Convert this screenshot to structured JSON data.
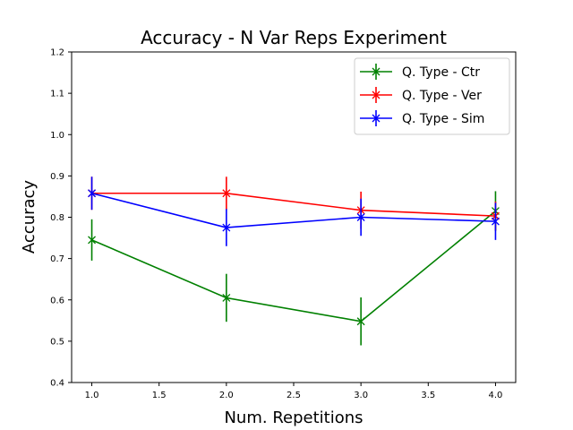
{
  "chart_data": {
    "type": "line",
    "title": "Accuracy - N Var Reps Experiment",
    "xlabel": "Num. Repetitions",
    "ylabel": "Accuracy",
    "xlim": [
      0.85,
      4.15
    ],
    "ylim": [
      0.4,
      1.2
    ],
    "xticks": [
      1.0,
      1.5,
      2.0,
      2.5,
      3.0,
      3.5,
      4.0
    ],
    "xtick_labels": [
      "1.0",
      "1.5",
      "2.0",
      "2.5",
      "3.0",
      "3.5",
      "4.0"
    ],
    "yticks": [
      0.4,
      0.5,
      0.6,
      0.7,
      0.8,
      0.9,
      1.0,
      1.1,
      1.2
    ],
    "ytick_labels": [
      "0.4",
      "0.5",
      "0.6",
      "0.7",
      "0.8",
      "0.9",
      "1.0",
      "1.1",
      "1.2"
    ],
    "legend_position": "top-right",
    "grid": false,
    "series": [
      {
        "name": "Q. Type - Ctr",
        "color": "#008000",
        "x": [
          1,
          2,
          3,
          4
        ],
        "y": [
          0.745,
          0.605,
          0.548,
          0.815
        ],
        "err": [
          0.05,
          0.058,
          0.058,
          0.048
        ]
      },
      {
        "name": "Q. Type - Ver",
        "color": "#ff0000",
        "x": [
          1,
          2,
          3,
          4
        ],
        "y": [
          0.858,
          0.858,
          0.817,
          0.803
        ],
        "err": [
          0.04,
          0.04,
          0.045,
          0.035
        ]
      },
      {
        "name": "Q. Type - Sim",
        "color": "#0000ff",
        "x": [
          1,
          2,
          3,
          4
        ],
        "y": [
          0.858,
          0.775,
          0.8,
          0.79
        ],
        "err": [
          0.04,
          0.045,
          0.045,
          0.045
        ]
      }
    ]
  }
}
